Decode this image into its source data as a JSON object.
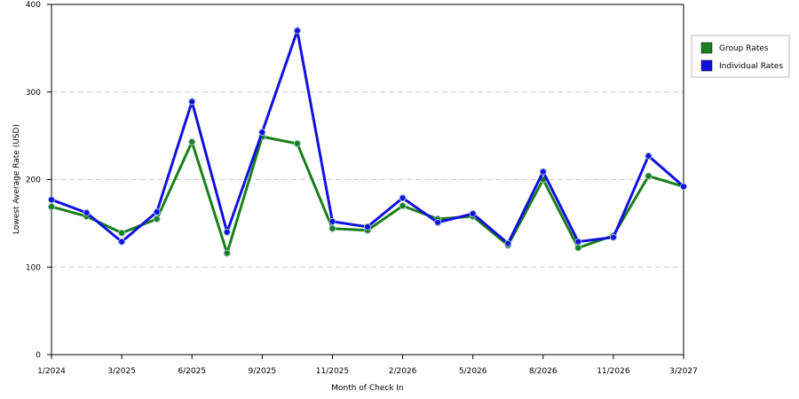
{
  "chart_data": {
    "type": "line",
    "xlabel": "Month of Check In",
    "ylabel": "Lowest Average Rate (USD)",
    "categories": [
      "1/2024",
      null,
      "3/2025",
      null,
      "6/2025",
      null,
      "9/2025",
      null,
      "11/2025",
      null,
      "2/2026",
      null,
      "5/2026",
      null,
      "8/2026",
      null,
      "11/2026",
      null,
      "3/2027"
    ],
    "series": [
      {
        "name": "Group Rates",
        "color": "#1a7f1a",
        "values": [
          169,
          158,
          139,
          155,
          243,
          116,
          249,
          241,
          144,
          142,
          170,
          155,
          158,
          125,
          200,
          122,
          136,
          204,
          192
        ]
      },
      {
        "name": "Individual Rates",
        "color": "#1010e0",
        "values": [
          177,
          162,
          129,
          163,
          289,
          140,
          254,
          370,
          152,
          146,
          179,
          151,
          161,
          127,
          209,
          129,
          134,
          227,
          192
        ]
      }
    ],
    "ylim": [
      0,
      400
    ],
    "yticks": [
      0,
      100,
      200,
      300,
      400
    ],
    "grid": true
  }
}
